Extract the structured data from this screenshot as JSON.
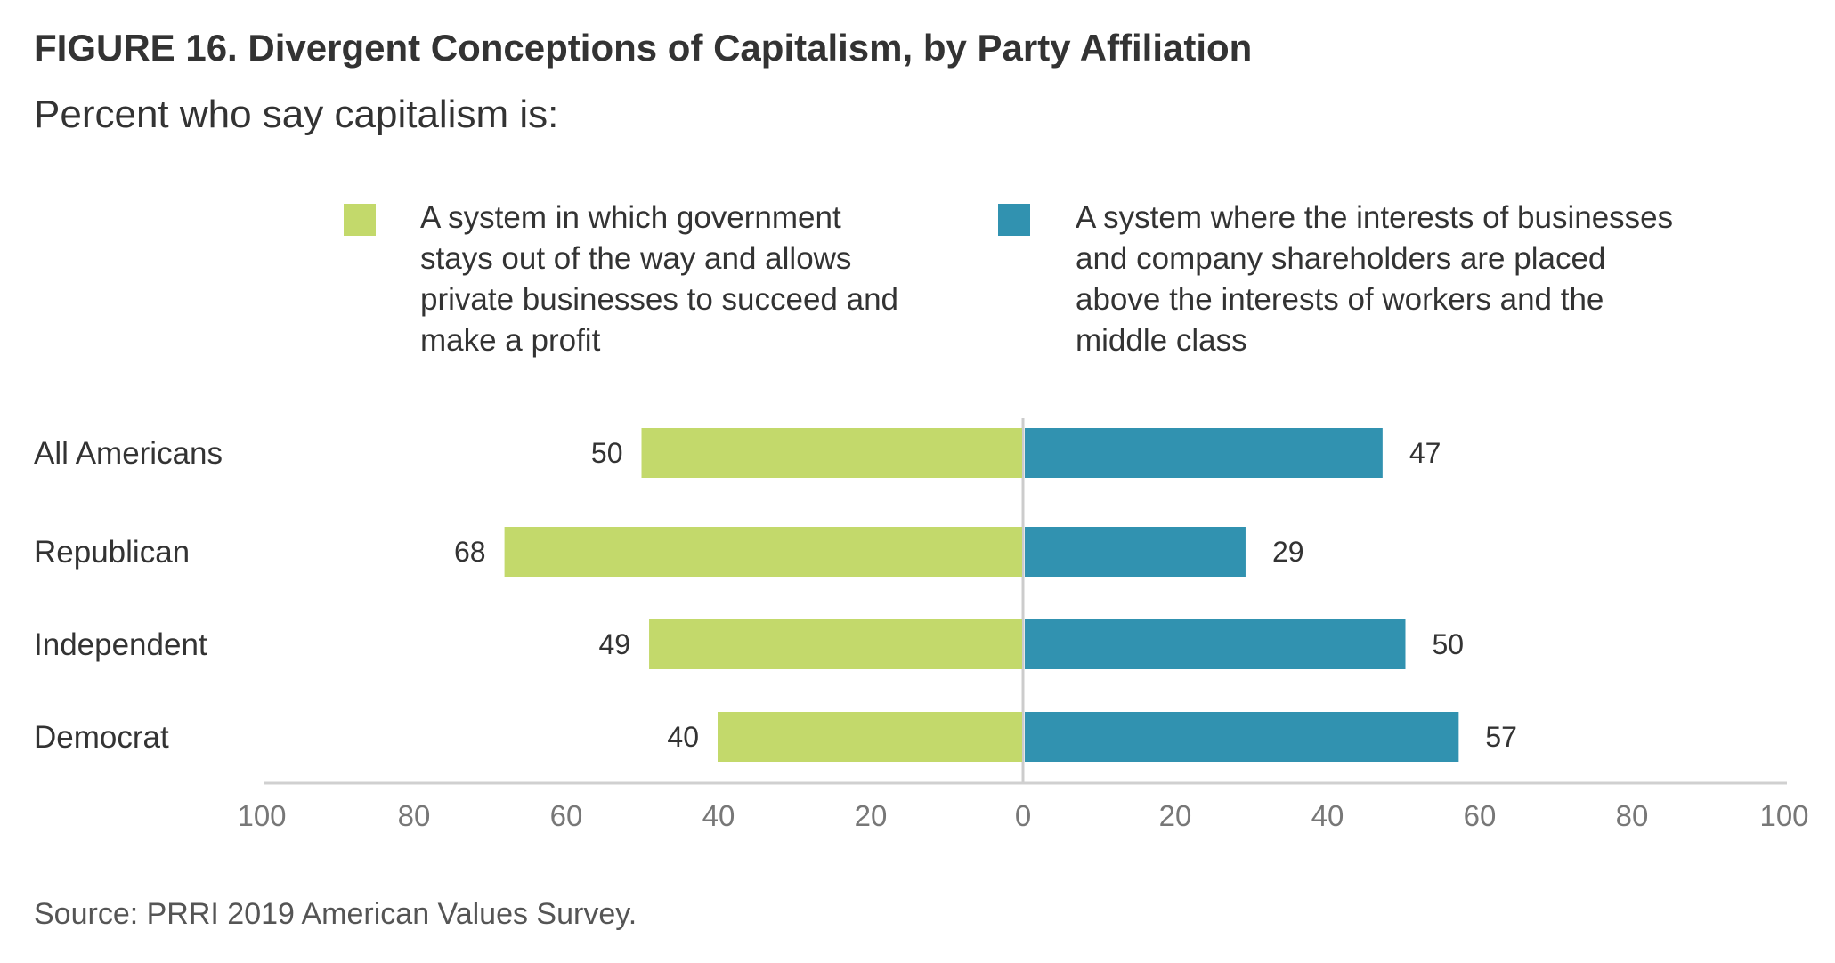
{
  "header": {
    "title": "FIGURE 16. Divergent Conceptions of Capitalism, by Party Affiliation",
    "subtitle": "Percent who say capitalism is:"
  },
  "footer": {
    "source": "Source: PRRI 2019 American Values Survey."
  },
  "chart_data": {
    "type": "bar",
    "orientation": "horizontal-diverging",
    "categories": [
      "All Americans",
      "Republican",
      "Independent",
      "Democrat"
    ],
    "series": [
      {
        "name": "A system in which government stays out of the way and allows private businesses to succeed and make a profit",
        "direction": "left",
        "color": "#c3d96b",
        "values": [
          50,
          68,
          49,
          40
        ]
      },
      {
        "name": "A system where the interests of businesses and company shareholders are placed above the interests of workers and the middle class",
        "direction": "right",
        "color": "#3192b0",
        "values": [
          47,
          29,
          50,
          57
        ]
      }
    ],
    "x_ticks": [
      "100",
      "80",
      "60",
      "40",
      "20",
      "0",
      "20",
      "40",
      "60",
      "80",
      "100"
    ],
    "xlim": [
      -100,
      100
    ],
    "grid": false,
    "legend_position": "top"
  }
}
